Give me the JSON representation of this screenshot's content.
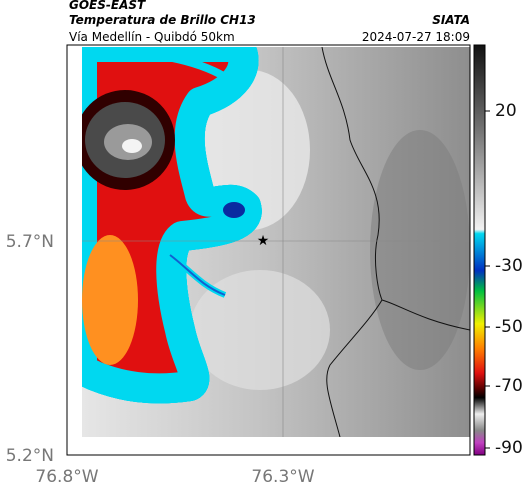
{
  "header": {
    "title": "GOES-EAST",
    "subtitle": "Temperatura de Brillo CH13",
    "route": "Vía Medellín - Quibdó 50km",
    "source": "SIATA",
    "timestamp": "2024-07-27 18:09"
  },
  "map": {
    "x_labels": [
      "76.8°W",
      "76.3°W"
    ],
    "y_labels": [
      "5.7°N",
      "5.2°N"
    ]
  },
  "colorbar": {
    "ticks": [
      20,
      -30,
      -50,
      -70,
      -90
    ]
  }
}
